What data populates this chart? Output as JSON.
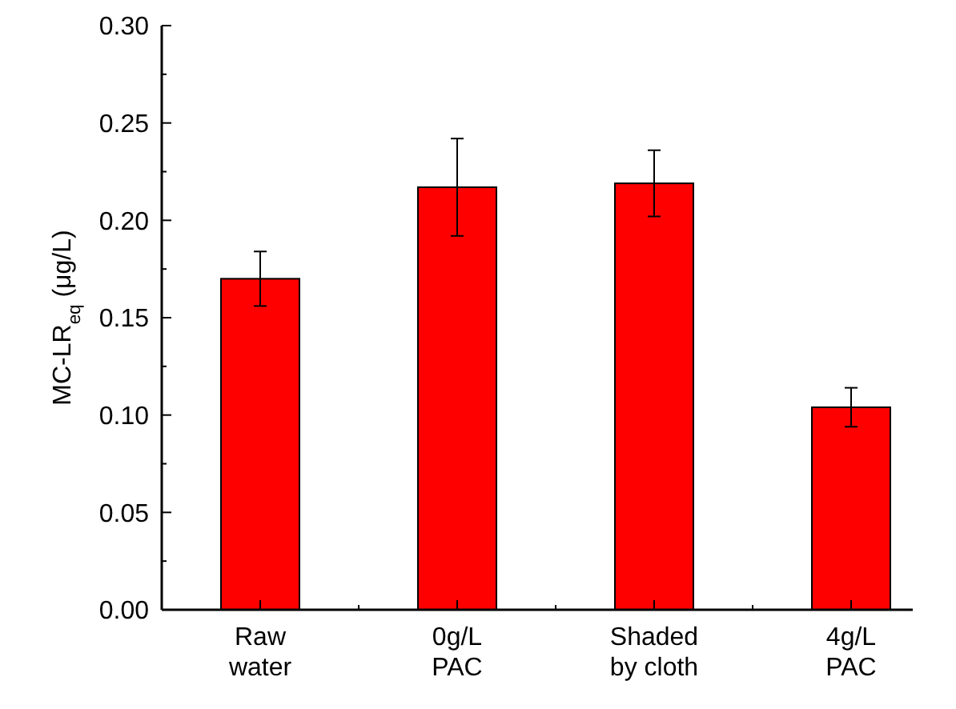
{
  "chart_data": {
    "type": "bar",
    "ylabel": "MC-LR$_{eq}$ (μg/L)",
    "categories": [
      "Raw\nwater",
      "0g/L\nPAC",
      "Shaded\nby cloth",
      "4g/L\nPAC"
    ],
    "values": [
      0.17,
      0.217,
      0.219,
      0.104
    ],
    "errors": [
      0.014,
      0.025,
      0.017,
      0.01
    ],
    "color": "#ff0000",
    "ylim": [
      0,
      0.3
    ],
    "yticks": [
      {
        "value": 0,
        "label": "0.00"
      },
      {
        "value": 0.025,
        "label": null
      },
      {
        "value": 0.05,
        "label": "0.05"
      },
      {
        "value": 0.075,
        "label": null
      },
      {
        "value": 0.1,
        "label": "0.10"
      },
      {
        "value": 0.125,
        "label": null
      },
      {
        "value": 0.15,
        "label": "0.15"
      },
      {
        "value": 0.175,
        "label": null
      },
      {
        "value": 0.2,
        "label": "0.20"
      },
      {
        "value": 0.225,
        "label": null
      },
      {
        "value": 0.25,
        "label": "0.25"
      },
      {
        "value": 0.275,
        "label": null
      },
      {
        "value": 0.3,
        "label": "0.30"
      }
    ],
    "grid": false
  }
}
